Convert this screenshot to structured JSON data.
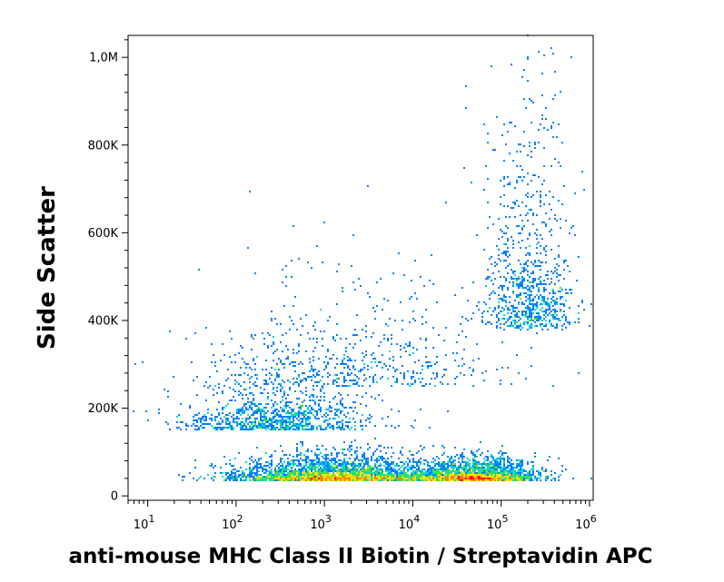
{
  "chart_data": {
    "type": "scatter",
    "title": "",
    "xlabel": "anti-mouse MHC Class II Biotin / Streptavidin APC",
    "ylabel": "Side Scatter",
    "x_scale": "log",
    "xlim": [
      6,
      1100000
    ],
    "ylim": [
      -10000,
      1050000
    ],
    "grid": false,
    "legend": "none",
    "x_ticks": [
      {
        "base": "10",
        "exp": "1",
        "value": 10
      },
      {
        "base": "10",
        "exp": "2",
        "value": 100
      },
      {
        "base": "10",
        "exp": "3",
        "value": 1000
      },
      {
        "base": "10",
        "exp": "4",
        "value": 10000
      },
      {
        "base": "10",
        "exp": "5",
        "value": 100000
      },
      {
        "base": "10",
        "exp": "6",
        "value": 1000000
      }
    ],
    "y_ticks": [
      {
        "label": "0",
        "value": 0
      },
      {
        "label": "200K",
        "value": 200000
      },
      {
        "label": "400K",
        "value": 400000
      },
      {
        "label": "600K",
        "value": 600000
      },
      {
        "label": "800K",
        "value": 800000
      },
      {
        "label": "1,0M",
        "value": 1000000
      }
    ],
    "density_colors": [
      "#0000cc",
      "#0080ff",
      "#00d8d8",
      "#40e040",
      "#ffe000",
      "#ff8000",
      "#ff0000"
    ],
    "populations": [
      {
        "x_center": 1300,
        "y_center": 35000,
        "x_spread_decades": 0.55,
        "y_spread": 25000,
        "count": 3200
      },
      {
        "x_center": 50000,
        "y_center": 35000,
        "x_spread_decades": 0.35,
        "y_spread": 22000,
        "count": 2400
      },
      {
        "x_center": 300,
        "y_center": 150000,
        "x_spread_decades": 0.5,
        "y_spread": 80000,
        "count": 1100
      },
      {
        "x_center": 200000,
        "y_center": 380000,
        "x_spread_decades": 0.25,
        "y_spread": 230000,
        "count": 900
      },
      {
        "x_center": 3000,
        "y_center": 250000,
        "x_spread_decades": 0.8,
        "y_spread": 130000,
        "count": 500
      }
    ]
  }
}
